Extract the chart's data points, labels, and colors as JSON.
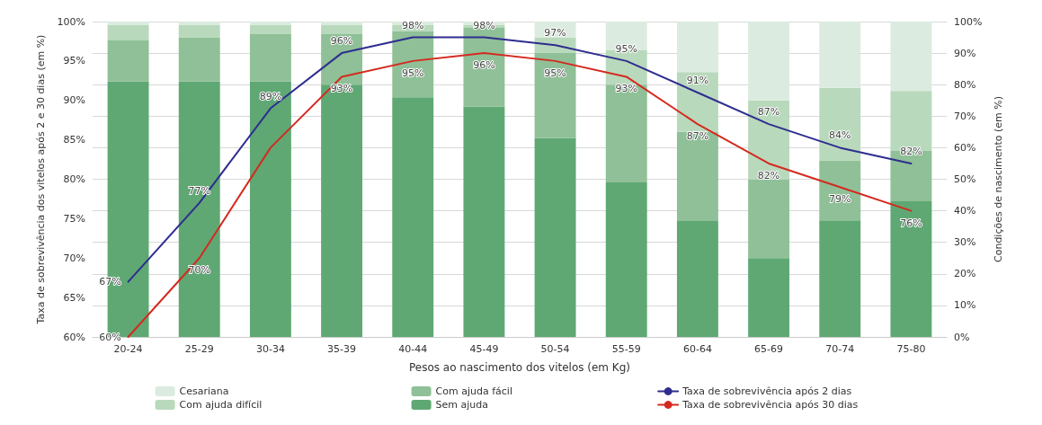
{
  "chart_data": {
    "type": "bar",
    "stacked": true,
    "xlabel": "Pesos ao nascimento dos vitelos (em Kg)",
    "ylabel": "Taxa de sobrevivência dos vitelos após 2 e 30 dias (em %)",
    "y2label": "Condições de nascimento (em %)",
    "categories": [
      "20-24",
      "25-29",
      "30-34",
      "35-39",
      "40-44",
      "45-49",
      "50-54",
      "55-59",
      "60-64",
      "65-69",
      "70-74",
      "75-80"
    ],
    "series": [
      {
        "name": "Sem ajuda",
        "axis": "y2",
        "color": "#5fa874",
        "values": [
          81,
          81,
          81,
          80,
          76,
          73,
          63,
          49,
          37,
          25,
          37,
          43
        ]
      },
      {
        "name": "Com ajuda fácil",
        "axis": "y2",
        "color": "#8fc097",
        "values": [
          13,
          14,
          15,
          16,
          21,
          25,
          27,
          31,
          28,
          25,
          19,
          16
        ]
      },
      {
        "name": "Com ajuda difícil",
        "axis": "y2",
        "color": "#b9d9bc",
        "values": [
          5,
          4,
          3,
          3,
          2,
          1,
          5,
          11,
          19,
          25,
          23,
          19
        ]
      },
      {
        "name": "Cesariana",
        "axis": "y2",
        "color": "#dcebdf",
        "values": [
          1,
          1,
          1,
          1,
          1,
          1,
          5,
          9,
          16,
          25,
          21,
          22
        ]
      },
      {
        "name": "Taxa de sobrevivência após 2 dias",
        "type": "line",
        "axis": "y",
        "color": "#2e2d8f",
        "values": [
          67,
          77,
          89,
          96,
          98,
          98,
          97,
          95,
          91,
          87,
          84,
          82
        ],
        "value_labels": [
          "67%",
          "77%",
          "89%",
          "96%",
          "98%",
          "98%",
          "97%",
          "95%",
          "91%",
          "87%",
          "84%",
          "82%"
        ]
      },
      {
        "name": "Taxa de sobrevivência após 30 dias",
        "type": "line",
        "axis": "y",
        "color": "#d42a20",
        "values": [
          60,
          70,
          84,
          93,
          95,
          96,
          95,
          93,
          87,
          82,
          79,
          76
        ],
        "value_labels": [
          "60%",
          "70%",
          null,
          "93%",
          "95%",
          "96%",
          "95%",
          "93%",
          "87%",
          "82%",
          "79%",
          "76%"
        ]
      }
    ],
    "ylim": [
      60,
      100
    ],
    "yticks": [
      {
        "value": 60,
        "label": "60%"
      },
      {
        "value": 65,
        "label": "65%"
      },
      {
        "value": 70,
        "label": "70%"
      },
      {
        "value": 75,
        "label": "75%"
      },
      {
        "value": 80,
        "label": "80%"
      },
      {
        "value": 85,
        "label": "85%"
      },
      {
        "value": 90,
        "label": "90%"
      },
      {
        "value": 95,
        "label": "95%"
      },
      {
        "value": 100,
        "label": "100%"
      }
    ],
    "y2lim": [
      0,
      100
    ],
    "y2ticks": [
      {
        "value": 0,
        "label": "0%"
      },
      {
        "value": 10,
        "label": "10%"
      },
      {
        "value": 20,
        "label": "20%"
      },
      {
        "value": 30,
        "label": "30%"
      },
      {
        "value": 40,
        "label": "40%"
      },
      {
        "value": 50,
        "label": "50%"
      },
      {
        "value": 60,
        "label": "60%"
      },
      {
        "value": 70,
        "label": "70%"
      },
      {
        "value": 80,
        "label": "80%"
      },
      {
        "value": 90,
        "label": "90%"
      },
      {
        "value": 100,
        "label": "100%"
      }
    ],
    "grid": "y",
    "legend": "bottom",
    "marker": "none",
    "line_style": "solid"
  }
}
